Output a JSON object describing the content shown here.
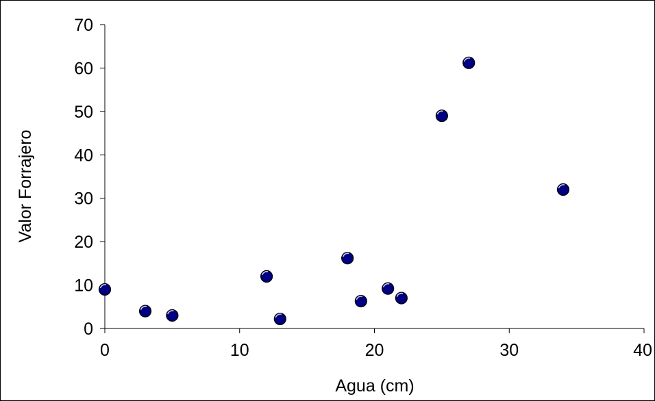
{
  "chart_data": {
    "type": "scatter",
    "title": "",
    "xlabel": "Agua (cm)",
    "ylabel": "Valor Forrajero",
    "xlim": [
      0,
      40
    ],
    "ylim": [
      0,
      70
    ],
    "xticks": [
      0,
      10,
      20,
      30,
      40
    ],
    "yticks": [
      0,
      10,
      20,
      30,
      40,
      50,
      60,
      70
    ],
    "grid": false,
    "legend": "none",
    "marker_color": "#000080",
    "series": [
      {
        "points": [
          {
            "x": 0,
            "y": 9
          },
          {
            "x": 3,
            "y": 4
          },
          {
            "x": 5,
            "y": 3
          },
          {
            "x": 12,
            "y": 12
          },
          {
            "x": 13,
            "y": 2.2
          },
          {
            "x": 18,
            "y": 16.2
          },
          {
            "x": 19,
            "y": 6.3
          },
          {
            "x": 21,
            "y": 9.2
          },
          {
            "x": 22,
            "y": 7
          },
          {
            "x": 25,
            "y": 49
          },
          {
            "x": 27,
            "y": 61.2
          },
          {
            "x": 34,
            "y": 32
          }
        ]
      }
    ]
  }
}
